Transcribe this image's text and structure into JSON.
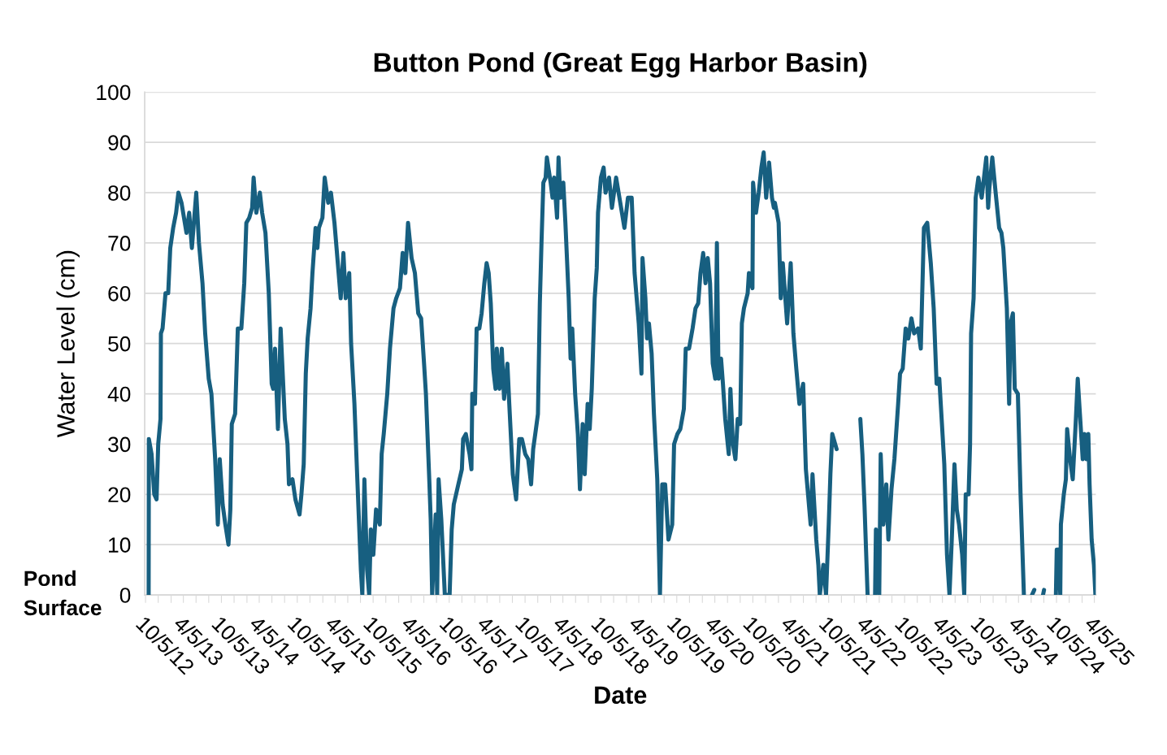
{
  "chart_data": {
    "type": "line",
    "title": "Button Pond (Great Egg Harbor Basin)",
    "xlabel": "Date",
    "ylabel": "Water Level (cm)",
    "annotations": [
      "Pond Surface"
    ],
    "ylim": [
      0,
      100
    ],
    "yticks": [
      0,
      10,
      20,
      30,
      40,
      50,
      60,
      70,
      80,
      90,
      100
    ],
    "xlim": [
      "2012-10-01",
      "2025-04-12"
    ],
    "xticks": [
      {
        "value": "2012-10-05",
        "label": "10/5/12"
      },
      {
        "value": "2012-12-05",
        "label": null
      },
      {
        "value": "2013-02-05",
        "label": null
      },
      {
        "value": "2013-04-05",
        "label": "4/5/13"
      },
      {
        "value": "2013-06-05",
        "label": null
      },
      {
        "value": "2013-08-05",
        "label": null
      },
      {
        "value": "2013-10-05",
        "label": "10/5/13"
      },
      {
        "value": "2013-12-05",
        "label": null
      },
      {
        "value": "2014-02-05",
        "label": null
      },
      {
        "value": "2014-04-05",
        "label": "4/5/14"
      },
      {
        "value": "2014-06-05",
        "label": null
      },
      {
        "value": "2014-08-05",
        "label": null
      },
      {
        "value": "2014-10-05",
        "label": "10/5/14"
      },
      {
        "value": "2014-12-05",
        "label": null
      },
      {
        "value": "2015-02-05",
        "label": null
      },
      {
        "value": "2015-04-05",
        "label": "4/5/15"
      },
      {
        "value": "2015-06-05",
        "label": null
      },
      {
        "value": "2015-08-05",
        "label": null
      },
      {
        "value": "2015-10-05",
        "label": "10/5/15"
      },
      {
        "value": "2015-12-05",
        "label": null
      },
      {
        "value": "2016-02-05",
        "label": null
      },
      {
        "value": "2016-04-05",
        "label": "4/5/16"
      },
      {
        "value": "2016-06-05",
        "label": null
      },
      {
        "value": "2016-08-05",
        "label": null
      },
      {
        "value": "2016-10-05",
        "label": "10/5/16"
      },
      {
        "value": "2016-12-05",
        "label": null
      },
      {
        "value": "2017-02-05",
        "label": null
      },
      {
        "value": "2017-04-05",
        "label": "4/5/17"
      },
      {
        "value": "2017-06-05",
        "label": null
      },
      {
        "value": "2017-08-05",
        "label": null
      },
      {
        "value": "2017-10-05",
        "label": "10/5/17"
      },
      {
        "value": "2017-12-05",
        "label": null
      },
      {
        "value": "2018-02-05",
        "label": null
      },
      {
        "value": "2018-04-05",
        "label": "4/5/18"
      },
      {
        "value": "2018-06-05",
        "label": null
      },
      {
        "value": "2018-08-05",
        "label": null
      },
      {
        "value": "2018-10-05",
        "label": "10/5/18"
      },
      {
        "value": "2018-12-05",
        "label": null
      },
      {
        "value": "2019-02-05",
        "label": null
      },
      {
        "value": "2019-04-05",
        "label": "4/5/19"
      },
      {
        "value": "2019-06-05",
        "label": null
      },
      {
        "value": "2019-08-05",
        "label": null
      },
      {
        "value": "2019-10-05",
        "label": "10/5/19"
      },
      {
        "value": "2019-12-05",
        "label": null
      },
      {
        "value": "2020-02-05",
        "label": null
      },
      {
        "value": "2020-04-05",
        "label": "4/5/20"
      },
      {
        "value": "2020-06-05",
        "label": null
      },
      {
        "value": "2020-08-05",
        "label": null
      },
      {
        "value": "2020-10-05",
        "label": "10/5/20"
      },
      {
        "value": "2020-12-05",
        "label": null
      },
      {
        "value": "2021-02-05",
        "label": null
      },
      {
        "value": "2021-04-05",
        "label": "4/5/21"
      },
      {
        "value": "2021-06-05",
        "label": null
      },
      {
        "value": "2021-08-05",
        "label": null
      },
      {
        "value": "2021-10-05",
        "label": "10/5/21"
      },
      {
        "value": "2021-12-05",
        "label": null
      },
      {
        "value": "2022-02-05",
        "label": null
      },
      {
        "value": "2022-04-05",
        "label": "4/5/22"
      },
      {
        "value": "2022-06-05",
        "label": null
      },
      {
        "value": "2022-08-05",
        "label": null
      },
      {
        "value": "2022-10-05",
        "label": "10/5/22"
      },
      {
        "value": "2022-12-05",
        "label": null
      },
      {
        "value": "2023-02-05",
        "label": null
      },
      {
        "value": "2023-04-05",
        "label": "4/5/23"
      },
      {
        "value": "2023-06-05",
        "label": null
      },
      {
        "value": "2023-08-05",
        "label": null
      },
      {
        "value": "2023-10-05",
        "label": "10/5/23"
      },
      {
        "value": "2023-12-05",
        "label": null
      },
      {
        "value": "2024-02-05",
        "label": null
      },
      {
        "value": "2024-04-05",
        "label": "4/5/24"
      },
      {
        "value": "2024-06-05",
        "label": null
      },
      {
        "value": "2024-08-05",
        "label": null
      },
      {
        "value": "2024-10-05",
        "label": "10/5/24"
      },
      {
        "value": "2024-12-05",
        "label": null
      },
      {
        "value": "2025-02-05",
        "label": null
      },
      {
        "value": "2025-04-05",
        "label": "4/5/25"
      }
    ],
    "grid": "y",
    "legend": false,
    "marker": "none",
    "line_style": "solid",
    "series": [
      {
        "color": "#175f80",
        "x": [
          "2012-10-20",
          "2012-10-21",
          "2012-11-03",
          "2012-11-16",
          "2012-11-27",
          "2012-12-05",
          "2012-12-16",
          "2012-12-18",
          "2012-12-26",
          "2013-01-09",
          "2013-01-22",
          "2013-02-01",
          "2013-02-15",
          "2013-03-01",
          "2013-03-12",
          "2013-03-27",
          "2013-04-20",
          "2013-05-03",
          "2013-05-16",
          "2013-06-06",
          "2013-06-19",
          "2013-07-06",
          "2013-07-19",
          "2013-08-05",
          "2013-08-18",
          "2013-09-05",
          "2013-09-18",
          "2013-09-27",
          "2013-10-11",
          "2013-10-24",
          "2013-11-08",
          "2013-11-17",
          "2013-11-24",
          "2013-12-10",
          "2013-12-23",
          "2014-01-09",
          "2014-01-23",
          "2014-02-02",
          "2014-02-16",
          "2014-03-02",
          "2014-03-09",
          "2014-03-22",
          "2014-04-08",
          "2014-04-19",
          "2014-05-05",
          "2014-05-21",
          "2014-06-04",
          "2014-06-11",
          "2014-06-20",
          "2014-07-04",
          "2014-07-17",
          "2014-08-06",
          "2014-08-19",
          "2014-08-26",
          "2014-09-12",
          "2014-09-26",
          "2014-10-16",
          "2014-10-25",
          "2014-11-05",
          "2014-11-15",
          "2014-11-24",
          "2014-12-08",
          "2014-12-17",
          "2015-01-01",
          "2015-01-10",
          "2015-01-17",
          "2015-02-03",
          "2015-02-14",
          "2015-03-03",
          "2015-03-16",
          "2015-04-02",
          "2015-04-16",
          "2015-05-02",
          "2015-05-15",
          "2015-05-26",
          "2015-06-12",
          "2015-06-21",
          "2015-07-07",
          "2015-07-21",
          "2015-08-07",
          "2015-08-14",
          "2015-08-24",
          "2015-09-06",
          "2015-09-16",
          "2015-09-24",
          "2015-10-06",
          "2015-10-19",
          "2015-11-06",
          "2015-11-15",
          "2015-11-25",
          "2015-12-12",
          "2015-12-25",
          "2016-01-11",
          "2016-01-24",
          "2016-02-11",
          "2016-02-24",
          "2016-03-08",
          "2016-03-21",
          "2016-04-07",
          "2016-04-23",
          "2016-05-09",
          "2016-05-23",
          "2016-06-06",
          "2016-06-15",
          "2016-07-02",
          "2016-07-08",
          "2016-07-15",
          "2016-08-01",
          "2016-08-08",
          "2016-08-15",
          "2016-08-28",
          "2016-09-14",
          "2016-10-07",
          "2016-10-17",
          "2016-10-27",
          "2016-11-18",
          "2016-12-05",
          "2016-12-11",
          "2016-12-24",
          "2017-01-11",
          "2017-01-20",
          "2017-01-24",
          "2017-02-06",
          "2017-02-14",
          "2017-02-27",
          "2017-03-10",
          "2017-03-23",
          "2017-04-03",
          "2017-04-13",
          "2017-04-23",
          "2017-05-05",
          "2017-05-16",
          "2017-05-22",
          "2017-06-04",
          "2017-06-15",
          "2017-06-26",
          "2017-07-12",
          "2017-07-21",
          "2017-08-07",
          "2017-08-23",
          "2017-09-07",
          "2017-09-20",
          "2017-10-06",
          "2017-10-20",
          "2017-11-03",
          "2017-11-13",
          "2017-11-23",
          "2017-12-06",
          "2017-12-15",
          "2017-12-23",
          "2018-01-01",
          "2018-01-12",
          "2018-01-18",
          "2018-02-05",
          "2018-02-14",
          "2018-02-22",
          "2018-03-08",
          "2018-03-15",
          "2018-03-24",
          "2018-04-07",
          "2018-04-17",
          "2018-05-03",
          "2018-05-12",
          "2018-05-20",
          "2018-06-03",
          "2018-06-16",
          "2018-06-26",
          "2018-07-09",
          "2018-07-19",
          "2018-08-02",
          "2018-08-12",
          "2018-08-22",
          "2018-09-05",
          "2018-09-15",
          "2018-09-21",
          "2018-10-05",
          "2018-10-18",
          "2018-10-27",
          "2018-11-13",
          "2018-11-27",
          "2018-12-17",
          "2019-01-06",
          "2019-01-26",
          "2019-02-12",
          "2019-03-02",
          "2019-03-16",
          "2019-04-05",
          "2019-04-18",
          "2019-04-23",
          "2019-05-07",
          "2019-05-15",
          "2019-05-24",
          "2019-06-06",
          "2019-06-17",
          "2019-07-03",
          "2019-07-16",
          "2019-07-27",
          "2019-08-10",
          "2019-08-26",
          "2019-09-13",
          "2019-09-22",
          "2019-10-08",
          "2019-10-22",
          "2019-11-08",
          "2019-11-17",
          "2019-12-03",
          "2019-12-20",
          "2020-01-03",
          "2020-01-16",
          "2020-01-27",
          "2020-02-09",
          "2020-02-20",
          "2020-03-02",
          "2020-03-13",
          "2020-03-26",
          "2020-04-07",
          "2020-04-15",
          "2020-04-23",
          "2020-05-05",
          "2020-05-14",
          "2020-05-25",
          "2020-06-11",
          "2020-06-19",
          "2020-07-01",
          "2020-07-13",
          "2020-07-24",
          "2020-08-05",
          "2020-08-13",
          "2020-08-23",
          "2020-09-10",
          "2020-09-16",
          "2020-10-03",
          "2020-10-06",
          "2020-10-20",
          "2020-11-02",
          "2020-11-15",
          "2020-11-26",
          "2020-12-08",
          "2020-12-22",
          "2021-01-05",
          "2021-01-14",
          "2021-01-19",
          "2021-02-06",
          "2021-02-16",
          "2021-02-26",
          "2021-03-19",
          "2021-04-05",
          "2021-04-18",
          "2021-05-02",
          "2021-05-17",
          "2021-06-04",
          "2021-06-17",
          "2021-07-10",
          "2021-07-19",
          "2021-08-06",
          "2021-08-16",
          "2021-08-23",
          "2021-09-09",
          "2021-09-22",
          "2021-10-05",
          "2021-10-13",
          "2021-10-22",
          "2021-11-12",
          "2022-01-01",
          "2022-03-06",
          "2022-03-16",
          "2022-03-26",
          "2022-04-10",
          "2022-04-20",
          "2022-05-16",
          "2022-05-20",
          "2022-06-05",
          "2022-06-12",
          "2022-06-25",
          "2022-07-09",
          "2022-07-19",
          "2022-08-03",
          "2022-08-17",
          "2022-09-04",
          "2022-09-13",
          "2022-09-26",
          "2022-10-10",
          "2022-10-23",
          "2022-11-07",
          "2022-11-20",
          "2022-12-09",
          "2022-12-22",
          "2023-01-06",
          "2023-01-22",
          "2023-02-08",
          "2023-02-22",
          "2023-03-08",
          "2023-03-21",
          "2023-03-28",
          "2023-04-14",
          "2023-04-27",
          "2023-05-09",
          "2023-05-20",
          "2023-06-02",
          "2023-06-13",
          "2023-06-24",
          "2023-07-09",
          "2023-07-19",
          "2023-07-26",
          "2023-08-09",
          "2023-08-16",
          "2023-08-21",
          "2023-09-02",
          "2023-09-12",
          "2023-09-25",
          "2023-10-11",
          "2023-11-02",
          "2023-11-11",
          "2023-11-17",
          "2023-12-01",
          "2023-12-17",
          "2024-01-03",
          "2024-01-14",
          "2024-01-23",
          "2024-02-09",
          "2024-02-20",
          "2024-02-27",
          "2024-03-09",
          "2024-03-18",
          "2024-04-02",
          "2024-04-15",
          "2024-05-01",
          "2024-06-01",
          "2024-06-09",
          "2024-06-20",
          "2024-07-01",
          "2024-08-01",
          "2024-08-06",
          "2024-09-01",
          "2024-10-02",
          "2024-10-06",
          "2024-10-15",
          "2024-10-23",
          "2024-10-26",
          "2024-11-09",
          "2024-11-19",
          "2024-11-25",
          "2024-12-09",
          "2024-12-22",
          "2025-01-05",
          "2025-01-15",
          "2025-01-24",
          "2025-02-08",
          "2025-02-17",
          "2025-02-26",
          "2025-03-07",
          "2025-03-13",
          "2025-03-23",
          "2025-04-03",
          "2025-04-10"
        ],
        "values": [
          0,
          31,
          28,
          20,
          19,
          30,
          35,
          52,
          53,
          60,
          60,
          69,
          73,
          76,
          80,
          78,
          72,
          76,
          69,
          80,
          70,
          62,
          52,
          43,
          40,
          27,
          14,
          27,
          18,
          14,
          10,
          17,
          34,
          36,
          53,
          53,
          62,
          74,
          75,
          77,
          83,
          76,
          80,
          76,
          72,
          60,
          42,
          41,
          49,
          33,
          53,
          35,
          30,
          22,
          23,
          19,
          16,
          20,
          26,
          44,
          51,
          57,
          64,
          73,
          69,
          73,
          75,
          83,
          78,
          80,
          74,
          67,
          59,
          68,
          59,
          64,
          50,
          38,
          23,
          5,
          0,
          23,
          5,
          0,
          13,
          8,
          17,
          14,
          28,
          32,
          40,
          49,
          57,
          59,
          61,
          68,
          64,
          74,
          67,
          64,
          56,
          55,
          46,
          40,
          22,
          15,
          0,
          16,
          0,
          23,
          15,
          0,
          0,
          13,
          18,
          22,
          25,
          31,
          32,
          28,
          25,
          40,
          38,
          53,
          53,
          56,
          62,
          66,
          64,
          58,
          45,
          41,
          49,
          41,
          49,
          39,
          46,
          38,
          24,
          19,
          31,
          31,
          28,
          27,
          22,
          29,
          32,
          36,
          58,
          70,
          82,
          83,
          87,
          82,
          79,
          83,
          75,
          87,
          79,
          82,
          74,
          59,
          47,
          53,
          40,
          32,
          21,
          34,
          24,
          38,
          33,
          41,
          59,
          65,
          76,
          83,
          85,
          80,
          83,
          77,
          83,
          78,
          73,
          79,
          79,
          64,
          54,
          44,
          67,
          59,
          51,
          54,
          48,
          36,
          23,
          0,
          22,
          22,
          11,
          14,
          30,
          32,
          33,
          37,
          49,
          49,
          53,
          57,
          58,
          64,
          68,
          62,
          67,
          62,
          46,
          43,
          70,
          43,
          47,
          42,
          35,
          28,
          41,
          30,
          27,
          35,
          34,
          54,
          57,
          60,
          64,
          61,
          82,
          76,
          80,
          85,
          88,
          79,
          86,
          79,
          77,
          78,
          74,
          59,
          66,
          54,
          66,
          52,
          45,
          38,
          42,
          25,
          14,
          24,
          11,
          6,
          0,
          6,
          0,
          14,
          24,
          32,
          29,
          null,
          35,
          28,
          18,
          0,
          null,
          0,
          13,
          0,
          28,
          14,
          22,
          11,
          21,
          27,
          38,
          44,
          45,
          53,
          51,
          55,
          52,
          53,
          49,
          73,
          74,
          66,
          57,
          42,
          43,
          38,
          26,
          8,
          0,
          11,
          26,
          17,
          14,
          8,
          0,
          20,
          20,
          30,
          52,
          59,
          79,
          83,
          79,
          87,
          77,
          81,
          87,
          80,
          73,
          72,
          69,
          57,
          38,
          54,
          56,
          41,
          40,
          20,
          0,
          null,
          0,
          1,
          null,
          0,
          1,
          null,
          0,
          9,
          9,
          0,
          14,
          20,
          23,
          33,
          27,
          23,
          34,
          43,
          37,
          27,
          32,
          27,
          32,
          22,
          11,
          6,
          0
        ]
      }
    ]
  }
}
